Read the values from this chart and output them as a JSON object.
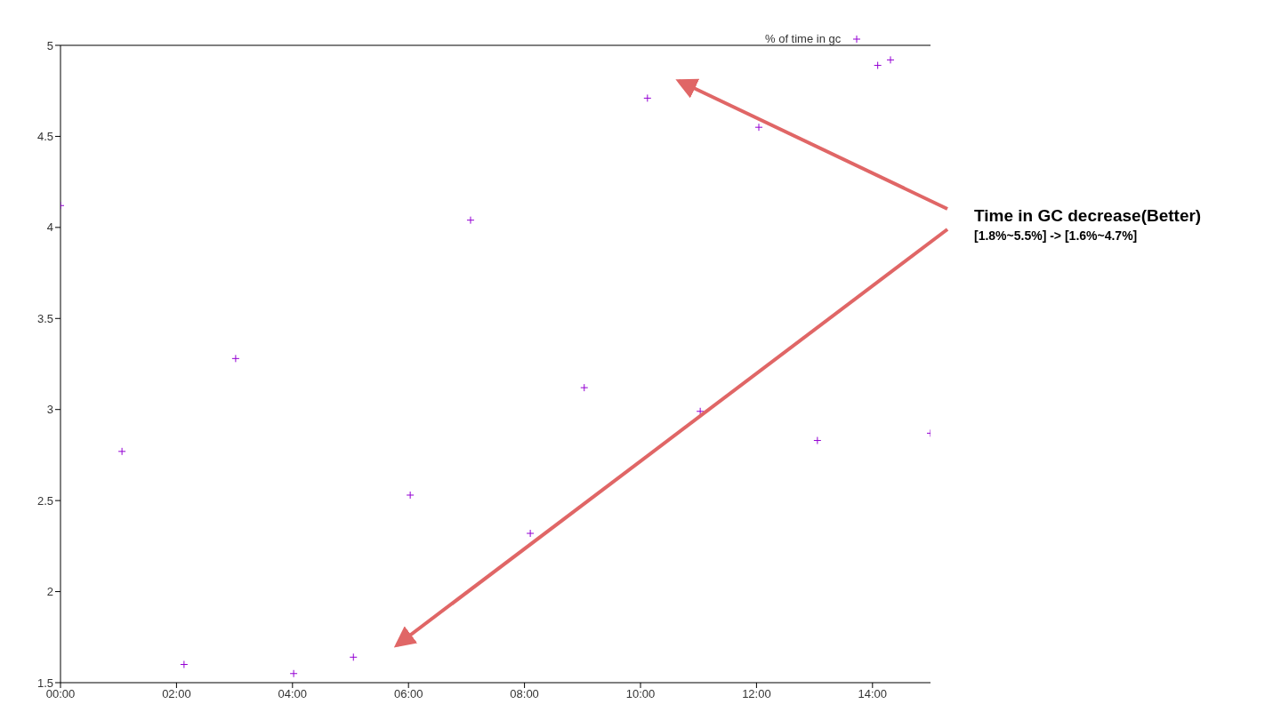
{
  "chart_data": {
    "type": "scatter",
    "xlim": [
      0,
      15
    ],
    "ylim": [
      1.5,
      5
    ],
    "xticks": [
      {
        "value": 0,
        "label": "00:00"
      },
      {
        "value": 2,
        "label": "02:00"
      },
      {
        "value": 4,
        "label": "04:00"
      },
      {
        "value": 6,
        "label": "06:00"
      },
      {
        "value": 8,
        "label": "08:00"
      },
      {
        "value": 10,
        "label": "10:00"
      },
      {
        "value": 12,
        "label": "12:00"
      },
      {
        "value": 14,
        "label": "14:00"
      }
    ],
    "yticks": [
      1.5,
      2,
      2.5,
      3,
      3.5,
      4,
      4.5,
      5
    ],
    "grid": false,
    "legend": "top right",
    "marker": "cross",
    "series": [
      {
        "name": "% of time in gc",
        "color": "#9400d3",
        "x": [
          0,
          1.06,
          2.13,
          3.02,
          4.02,
          5.05,
          6.03,
          7.07,
          8.1,
          9.03,
          10.12,
          11.03,
          12.04,
          13.05,
          14.09,
          14.31,
          15
        ],
        "values": [
          4.12,
          2.77,
          1.6,
          3.28,
          1.55,
          1.64,
          2.53,
          4.04,
          2.32,
          3.12,
          4.71,
          2.99,
          4.55,
          2.83,
          4.89,
          4.92,
          2.87
        ]
      }
    ],
    "annotations": [
      "Time in GC decrease(Better)",
      "[1.8%~5.5%] -> [1.6%~4.7%]"
    ]
  }
}
